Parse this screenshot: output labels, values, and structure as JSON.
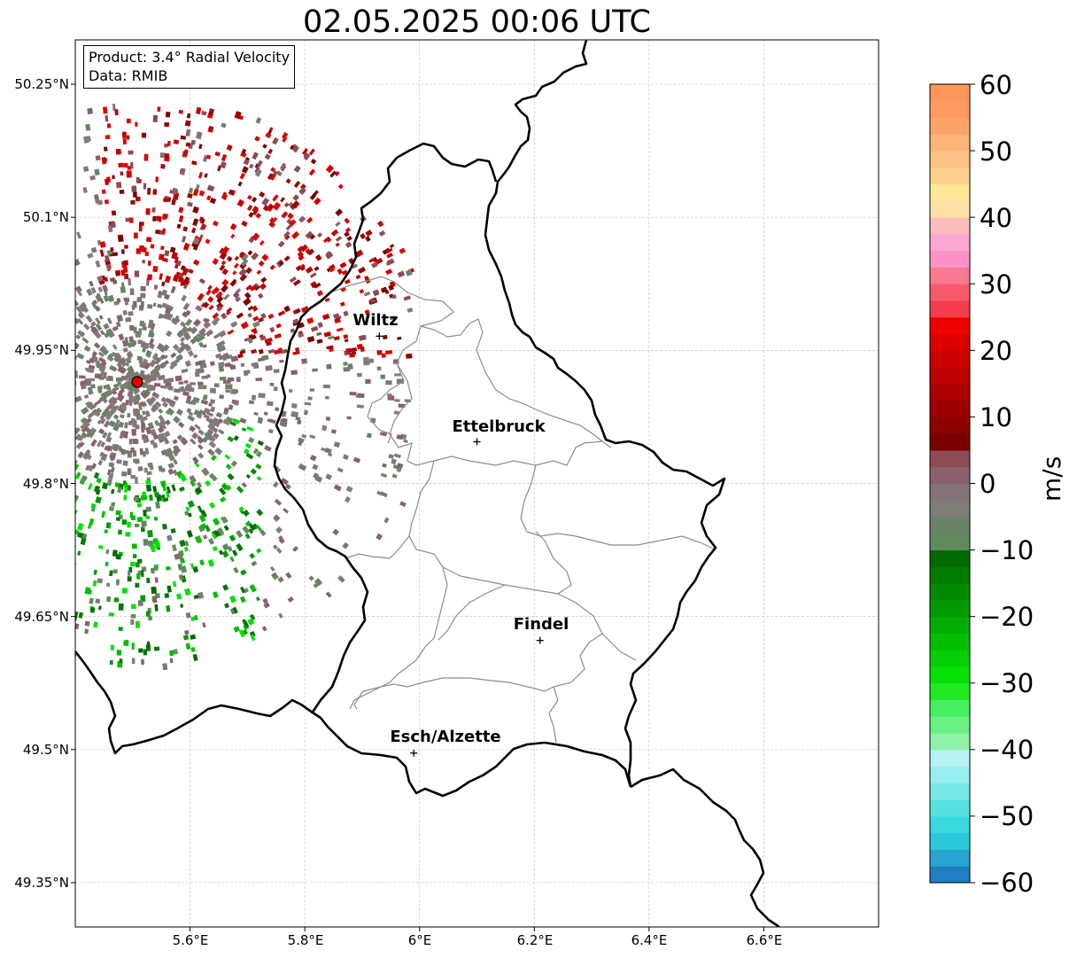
{
  "title": "02.05.2025 00:06 UTC",
  "info": {
    "product": "Product: 3.4° Radial Velocity",
    "data": "Data: RMIB"
  },
  "axes": {
    "lat_ticks": [
      "50.25°N",
      "50.1°N",
      "49.95°N",
      "49.8°N",
      "49.65°N",
      "49.5°N",
      "49.35°N"
    ],
    "lon_ticks": [
      "5.6°E",
      "5.8°E",
      "6°E",
      "6.2°E",
      "6.4°E",
      "6.6°E"
    ],
    "lat_range": [
      49.3,
      50.3
    ],
    "lon_range": [
      5.4,
      6.8
    ]
  },
  "cities": [
    {
      "name": "Wiltz",
      "lon": 5.93,
      "lat": 49.966
    },
    {
      "name": "Ettelbruck",
      "lon": 6.1,
      "lat": 49.847
    },
    {
      "name": "Findel",
      "lon": 6.21,
      "lat": 49.623
    },
    {
      "name": "Esch/Alzette",
      "lon": 5.99,
      "lat": 49.496
    }
  ],
  "radar_site": {
    "lon": 5.505,
    "lat": 49.915
  },
  "colorbar": {
    "unit": "m/s",
    "min": -60,
    "max": 60,
    "ticks": [
      "60",
      "50",
      "40",
      "30",
      "20",
      "10",
      "0",
      "−10",
      "−20",
      "−30",
      "−40",
      "−50",
      "−60"
    ],
    "colors": [
      "#1f7fc0",
      "#27a4cf",
      "#2ec7da",
      "#38d9df",
      "#57e2e2",
      "#7ae8e8",
      "#98eeee",
      "#b6f2f2",
      "#8ef2a8",
      "#6bf083",
      "#44f060",
      "#22ea22",
      "#05e005",
      "#04cf04",
      "#03bd03",
      "#03ac03",
      "#029a02",
      "#028a02",
      "#017a01",
      "#016a01",
      "#5f8b5d",
      "#6a8266",
      "#7e7d76",
      "#85737a",
      "#8a606c",
      "#8d4b54",
      "#7a0000",
      "#8c0000",
      "#9c0000",
      "#ad0000",
      "#bd0000",
      "#cd0000",
      "#dd0000",
      "#ee0000",
      "#f53d4e",
      "#f75a6c",
      "#fa7890",
      "#fd92c6",
      "#fda8d2",
      "#fdbcbc",
      "#fde0a8",
      "#fde89a",
      "#fdd08e",
      "#fdc284",
      "#fdb478",
      "#fda46a",
      "#fd9a60",
      "#fd9658"
    ]
  }
}
